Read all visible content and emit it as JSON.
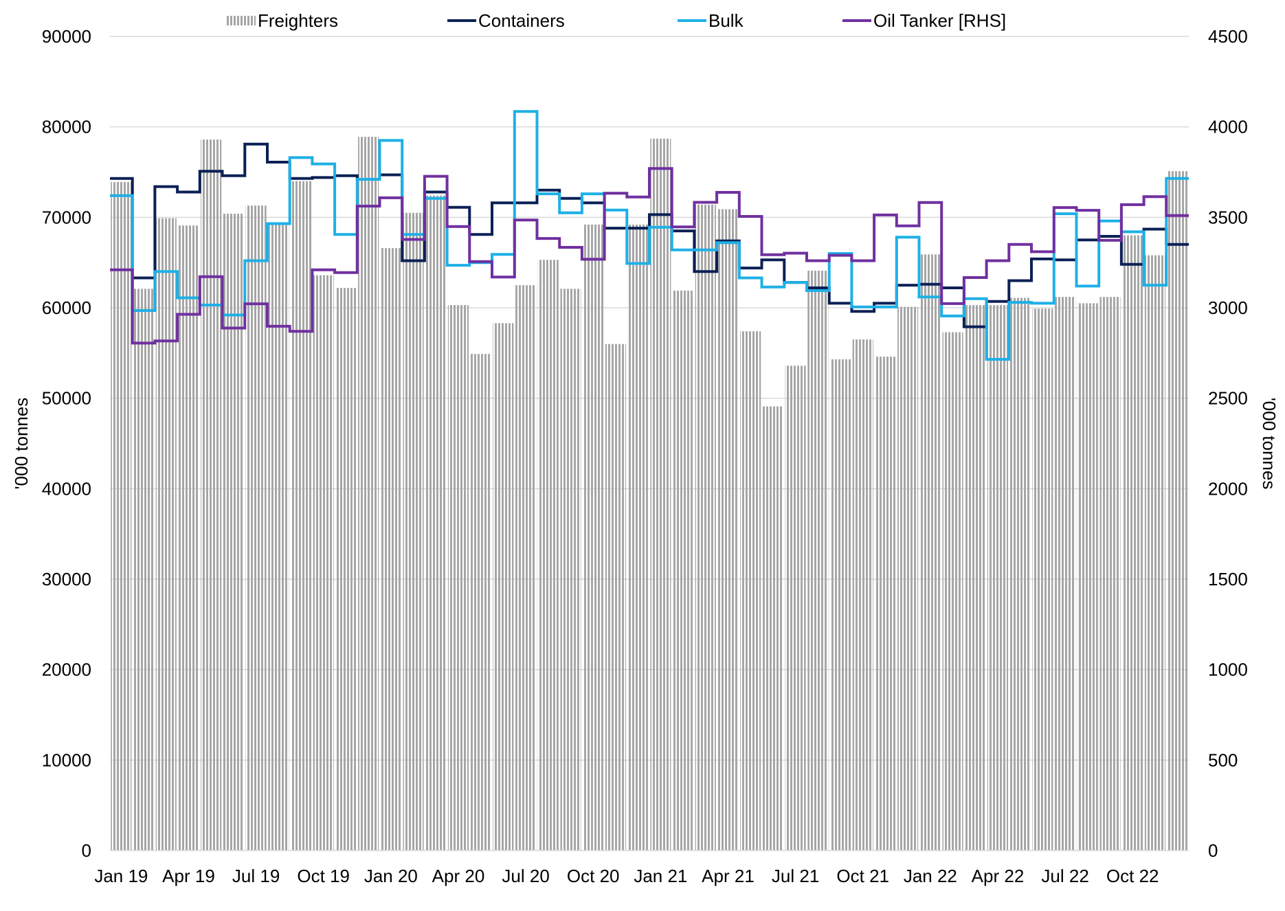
{
  "chart_data": {
    "type": "bar",
    "title": "",
    "xlabel": "",
    "ylabel_left": "'000 tonnes",
    "ylabel_right": "'000 tonnes",
    "ylim_left": [
      0,
      90000
    ],
    "ylim_right": [
      0,
      4500
    ],
    "yticks_left": [
      "0",
      "10000",
      "20000",
      "30000",
      "40000",
      "50000",
      "60000",
      "70000",
      "80000",
      "90000"
    ],
    "yticks_right": [
      "0",
      "500",
      "1000",
      "1500",
      "2000",
      "2500",
      "3000",
      "3500",
      "4000",
      "4500"
    ],
    "xtick_labels": [
      "Jan 19",
      "Apr 19",
      "Jul 19",
      "Oct 19",
      "Jan 20",
      "Apr 20",
      "Jul 20",
      "Oct 20",
      "Jan 21",
      "Apr 21",
      "Jul 21",
      "Oct 21",
      "Jan 22",
      "Apr 22",
      "Jul 22",
      "Oct 22"
    ],
    "legend_position": "top",
    "grid": "horizontal",
    "categories": [
      "Jan 19",
      "Feb 19",
      "Mar 19",
      "Apr 19",
      "May 19",
      "Jun 19",
      "Jul 19",
      "Aug 19",
      "Sep 19",
      "Oct 19",
      "Nov 19",
      "Dec 19",
      "Jan 20",
      "Feb 20",
      "Mar 20",
      "Apr 20",
      "May 20",
      "Jun 20",
      "Jul 20",
      "Aug 20",
      "Sep 20",
      "Oct 20",
      "Nov 20",
      "Dec 20",
      "Jan 21",
      "Feb 21",
      "Mar 21",
      "Apr 21",
      "May 21",
      "Jun 21",
      "Jul 21",
      "Aug 21",
      "Sep 21",
      "Oct 21",
      "Nov 21",
      "Dec 21",
      "Jan 22",
      "Feb 22",
      "Mar 22",
      "Apr 22",
      "May 22",
      "Jun 22",
      "Jul 22",
      "Aug 22",
      "Sep 22",
      "Oct 22",
      "Nov 22",
      "Dec 22"
    ],
    "series": [
      {
        "name": "Freighters",
        "type": "bar",
        "axis": "left",
        "color": "#a6a6a6",
        "values": [
          73900,
          62100,
          69900,
          69100,
          78600,
          70400,
          71300,
          69200,
          74000,
          63600,
          62200,
          78900,
          66600,
          70500,
          72400,
          60300,
          54900,
          58300,
          62500,
          65300,
          62100,
          69200,
          56000,
          69200,
          78700,
          61900,
          71400,
          70900,
          57400,
          49100,
          53600,
          64100,
          54300,
          56500,
          54600,
          60100,
          65900,
          57300,
          60300,
          60300,
          61100,
          59900,
          61200,
          60500,
          61200,
          68000,
          65800,
          75100
        ]
      },
      {
        "name": "Containers",
        "type": "line",
        "axis": "left",
        "color": "#0b2055",
        "values": [
          74300,
          63300,
          73400,
          72800,
          75100,
          74600,
          78100,
          76100,
          74300,
          74400,
          74600,
          74200,
          74700,
          65200,
          72800,
          71100,
          68100,
          71600,
          71600,
          73000,
          72100,
          71600,
          68800,
          68800,
          70300,
          68500,
          64000,
          67400,
          64400,
          65300,
          62800,
          62200,
          60500,
          59600,
          60500,
          62500,
          62600,
          62200,
          57900,
          60700,
          63000,
          65400,
          65300,
          67500,
          67900,
          64800,
          68700,
          67000
        ]
      },
      {
        "name": "Bulk",
        "type": "line",
        "axis": "left",
        "color": "#1eb0e6",
        "values": [
          72400,
          59700,
          64000,
          61100,
          60300,
          59200,
          65200,
          69300,
          76600,
          75900,
          68100,
          74200,
          78500,
          68100,
          72100,
          64700,
          65000,
          65900,
          81700,
          72600,
          70500,
          72600,
          70800,
          64900,
          68900,
          66400,
          66400,
          67200,
          63300,
          62300,
          62800,
          61900,
          66000,
          60100,
          60100,
          67800,
          61200,
          59100,
          61000,
          54300,
          60600,
          60500,
          70400,
          62400,
          69600,
          68400,
          62500,
          74300
        ]
      },
      {
        "name": "Oil Tanker [RHS]",
        "type": "line",
        "axis": "right",
        "color": "#7030a0",
        "values": [
          3210,
          2805,
          2817,
          2964,
          3172,
          2888,
          3022,
          2898,
          2870,
          3210,
          3195,
          3562,
          3608,
          3378,
          3727,
          3449,
          3255,
          3170,
          3485,
          3383,
          3334,
          3268,
          3633,
          3612,
          3770,
          3447,
          3583,
          3638,
          3505,
          3293,
          3302,
          3260,
          3290,
          3260,
          3513,
          3453,
          3582,
          3023,
          3167,
          3260,
          3350,
          3310,
          3554,
          3539,
          3373,
          3570,
          3614,
          3510
        ]
      }
    ]
  }
}
